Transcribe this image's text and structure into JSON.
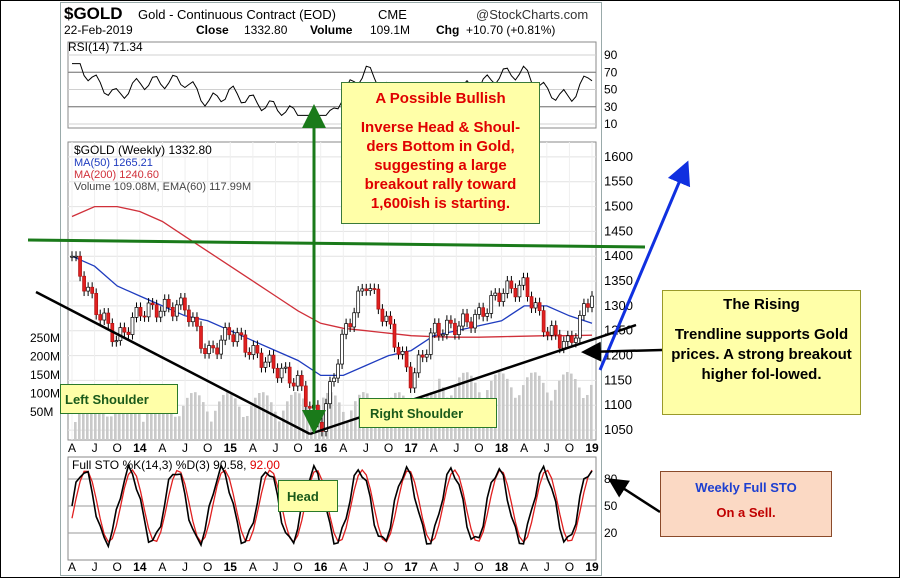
{
  "header": {
    "symbol": "$GOLD",
    "name": "Gold - Continuous Contract (EOD)",
    "exchange": "CME",
    "source": "@StockCharts.com",
    "date": "22-Feb-2019",
    "close_label": "Close",
    "close_value": "1332.80",
    "volume_label": "Volume",
    "volume_value": "109.1M",
    "chg_label": "Chg",
    "chg_value": "+10.70 (+0.81%)"
  },
  "rsi_panel": {
    "label": "RSI(14) 71.34",
    "ticks": [
      "90",
      "70",
      "50",
      "30",
      "10"
    ]
  },
  "price_panel": {
    "title": "$GOLD (Weekly) 1332.80",
    "ma50": "MA(50) 1265.21",
    "ma200": "MA(200) 1240.60",
    "volume": "Volume 109.08M, EMA(60) 117.99M",
    "price_ticks": [
      "1600",
      "1550",
      "1500",
      "1450",
      "1400",
      "1350",
      "1300",
      "1250",
      "1200",
      "1150",
      "1100",
      "1050"
    ],
    "volume_ticks": [
      "250M",
      "200M",
      "150M",
      "100M",
      "50M"
    ],
    "x_labels": [
      "A",
      "J",
      "O",
      "14",
      "A",
      "J",
      "O",
      "15",
      "A",
      "J",
      "O",
      "16",
      "A",
      "J",
      "O",
      "17",
      "A",
      "J",
      "O",
      "18",
      "A",
      "J",
      "O",
      "19"
    ]
  },
  "sto_panel": {
    "label": "Full STO %K(14,3) %D(3) 90.58,",
    "value_red": "92.00",
    "ticks": [
      "80",
      "50",
      "20"
    ]
  },
  "annotations": {
    "bullish_title": "A Possible Bullish",
    "bullish_body": "Inverse Head & Shoul-ders Bottom in Gold, suggesting a large breakout rally toward 1,600ish is starting.",
    "rising_title": "The Rising",
    "rising_body": "Trendline supports Gold prices. A strong breakout higher fol-lowed.",
    "left_shoulder": "Left Shoulder",
    "right_shoulder": "Right Shoulder",
    "head": "Head",
    "sto_title": "Weekly Full STO",
    "sto_body": "On a Sell."
  },
  "colors": {
    "price": "#000000",
    "ma50": "#1f3cbf",
    "ma200": "#d0303a",
    "sto_k": "#000000",
    "sto_d": "#e02020",
    "neckline": "#1a7a1a",
    "blue_arrow": "#1030e0",
    "annotation_red": "#e00000",
    "sto_note_blue": "#1d3fd0",
    "sto_note_red": "#c00000"
  },
  "chart_data": {
    "type": "line",
    "title": "$GOLD (Weekly) 1332.80",
    "x": [
      "A13",
      "J13",
      "O13",
      "14",
      "A14",
      "J14",
      "O14",
      "15",
      "A15",
      "J15",
      "O15",
      "16",
      "A16",
      "J16",
      "O16",
      "17",
      "A17",
      "J17",
      "O17",
      "18",
      "A18",
      "J18",
      "O18",
      "19"
    ],
    "ylim": [
      1030,
      1630
    ],
    "series": [
      {
        "name": "$GOLD (Weekly) 1332.80",
        "values": [
          1400,
          1300,
          1230,
          1290,
          1295,
          1300,
          1200,
          1250,
          1205,
          1175,
          1145,
          1055,
          1240,
          1350,
          1260,
          1150,
          1250,
          1260,
          1280,
          1330,
          1340,
          1250,
          1220,
          1330
        ]
      },
      {
        "name": "MA(50) 1265.21",
        "values": [
          1400,
          1380,
          1340,
          1320,
          1300,
          1280,
          1270,
          1250,
          1230,
          1210,
          1190,
          1160,
          1160,
          1180,
          1200,
          1210,
          1240,
          1250,
          1260,
          1270,
          1300,
          1300,
          1280,
          1265
        ]
      },
      {
        "name": "MA(200) 1240.60",
        "values": [
          1480,
          1500,
          1500,
          1490,
          1470,
          1440,
          1410,
          1380,
          1350,
          1320,
          1290,
          1265,
          1255,
          1250,
          1245,
          1240,
          1238,
          1237,
          1237,
          1238,
          1239,
          1240,
          1240,
          1241
        ]
      }
    ]
  }
}
